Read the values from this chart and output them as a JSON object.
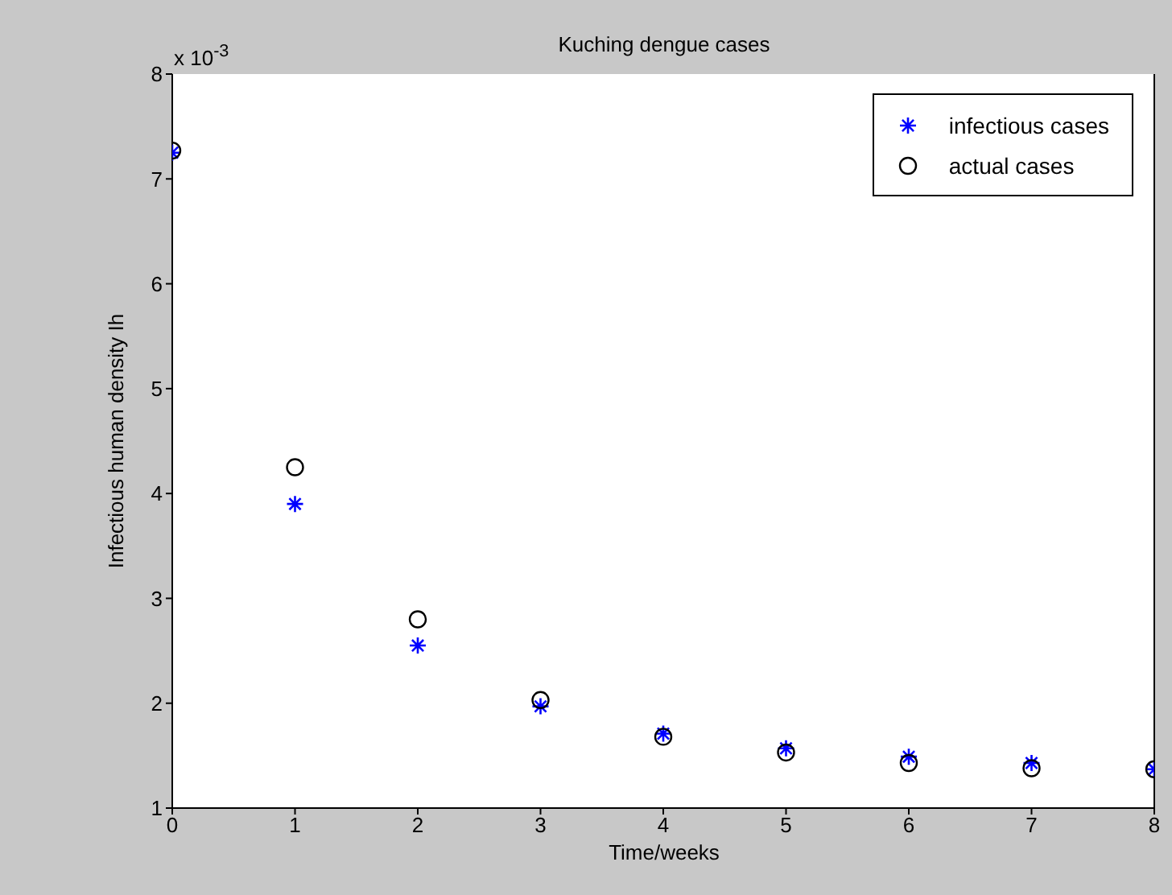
{
  "chart_data": {
    "type": "scatter",
    "title": "Kuching dengue cases",
    "xlabel": "Time/weeks",
    "ylabel": "Infectious human density Ih",
    "annotations": [
      "x 10$^{-3}$"
    ],
    "x": [
      0,
      1,
      2,
      3,
      4,
      5,
      6,
      7,
      8
    ],
    "series": [
      {
        "name": "infectious cases",
        "color": "#0000ff",
        "marker": "cross",
        "values": [
          7.25,
          3.9,
          2.55,
          1.97,
          1.71,
          1.57,
          1.49,
          1.43,
          1.37
        ]
      },
      {
        "name": "actual cases",
        "color": "#000000",
        "marker": "circle",
        "values": [
          7.27,
          4.25,
          2.8,
          2.03,
          1.68,
          1.53,
          1.43,
          1.38,
          1.37
        ]
      }
    ],
    "xlim": [
      0,
      8
    ],
    "xticks": [
      0,
      1,
      2,
      3,
      4,
      5,
      6,
      7,
      8
    ],
    "ylim": [
      1,
      8
    ],
    "yticks": [
      1,
      2,
      3,
      4,
      5,
      6,
      7,
      8
    ],
    "grid": false,
    "legend": "top right"
  }
}
